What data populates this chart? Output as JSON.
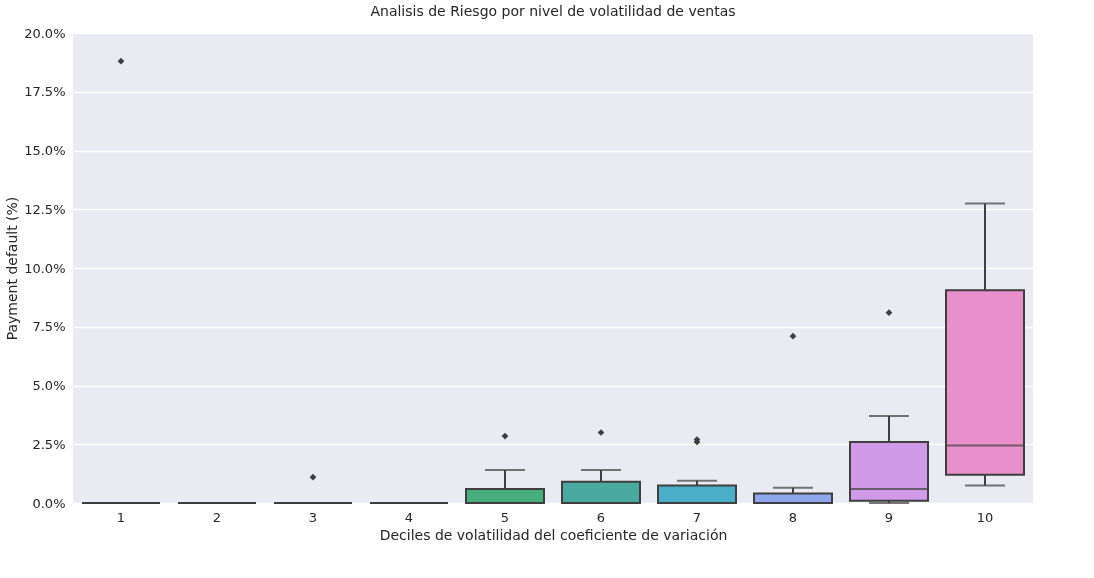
{
  "chart_data": {
    "type": "box",
    "title": "Analisis de Riesgo por nivel de volatilidad de ventas",
    "xlabel": "Deciles de volatilidad del coeficiente de variación",
    "ylabel": "Payment default (%)",
    "categories": [
      "1",
      "2",
      "3",
      "4",
      "5",
      "6",
      "7",
      "8",
      "9",
      "10"
    ],
    "colors": [
      null,
      null,
      null,
      null,
      "#4aad7d",
      "#4aaaa2",
      "#4aaec8",
      "#8fa8ec",
      "#d09ae8",
      "#e98fcb"
    ],
    "boxes": [
      {
        "low": 0,
        "q1": 0,
        "median": 0,
        "q3": 0,
        "high": 0,
        "outliers": [
          18.8
        ]
      },
      {
        "low": 0,
        "q1": 0,
        "median": 0,
        "q3": 0,
        "high": 0
      },
      {
        "low": 0,
        "q1": 0,
        "median": 0,
        "q3": 0,
        "high": 0,
        "outliers": [
          1.1
        ]
      },
      {
        "low": 0,
        "q1": 0,
        "median": 0,
        "q3": 0,
        "high": 0
      },
      {
        "low": 0,
        "q1": 0,
        "median": 0,
        "q3": 0.6,
        "high": 1.4,
        "outliers": [
          2.85
        ]
      },
      {
        "low": 0,
        "q1": 0,
        "median": 0,
        "q3": 0.9,
        "high": 1.4,
        "outliers": [
          3.0
        ]
      },
      {
        "low": 0,
        "q1": 0,
        "median": 0,
        "q3": 0.75,
        "high": 0.95,
        "outliers": [
          2.6,
          2.7
        ]
      },
      {
        "low": 0,
        "q1": 0,
        "median": 0,
        "q3": 0.4,
        "high": 0.65,
        "outliers": [
          7.1
        ]
      },
      {
        "low": 0,
        "q1": 0.1,
        "median": 0.6,
        "q3": 2.6,
        "high": 3.7,
        "outliers": [
          8.1
        ]
      },
      {
        "low": 0.75,
        "q1": 1.2,
        "median": 2.45,
        "q3": 9.05,
        "high": 12.75
      }
    ],
    "ylim": [
      0,
      20
    ],
    "yticks": [
      {
        "value": 0,
        "label": "0.0%"
      },
      {
        "value": 2.5,
        "label": "2.5%"
      },
      {
        "value": 5,
        "label": "5.0%"
      },
      {
        "value": 7.5,
        "label": "7.5%"
      },
      {
        "value": 10,
        "label": "10.0%"
      },
      {
        "value": 12.5,
        "label": "12.5%"
      },
      {
        "value": 15,
        "label": "15.0%"
      },
      {
        "value": 17.5,
        "label": "17.5%"
      },
      {
        "value": 20,
        "label": "20.0%"
      }
    ],
    "grid": "y",
    "marker": "diamond"
  }
}
